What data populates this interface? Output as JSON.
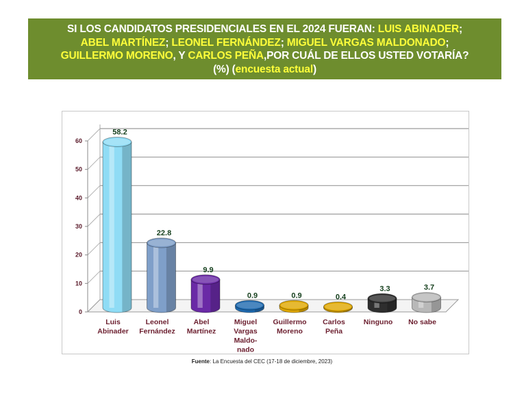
{
  "header": {
    "parts": [
      {
        "text": "SI LOS CANDIDATOS PRESIDENCIALES EN EL 2024 FUERAN: ",
        "hl": false
      },
      {
        "text": "LUIS ABINADER",
        "hl": true
      },
      {
        "text": ";",
        "hl": false
      },
      {
        "text": "ABEL MARTÍNEZ",
        "hl": true
      },
      {
        "text": "; ",
        "hl": false
      },
      {
        "text": "LEONEL FERNÁNDEZ",
        "hl": true
      },
      {
        "text": "; ",
        "hl": false
      },
      {
        "text": "MIGUEL VARGAS MALDONADO",
        "hl": true
      },
      {
        "text": ";",
        "hl": false
      },
      {
        "text": "GUILLERMO MORENO",
        "hl": true
      },
      {
        "text": ", Y ",
        "hl": false
      },
      {
        "text": "CARLOS PEÑA",
        "hl": true
      },
      {
        "text": ",POR CUÁL DE ELLOS USTED VOTARÍA?",
        "hl": false
      },
      {
        "text": "(%) (",
        "hl": false
      },
      {
        "text": "encuesta actual",
        "hl": true
      },
      {
        "text": ")",
        "hl": false
      }
    ]
  },
  "colors": {
    "header_bg": "#6e8d2e",
    "highlight": "#ffff3a"
  },
  "chart_data": {
    "type": "bar",
    "title": "SI LOS CANDIDATOS PRESIDENCIALES EN EL 2024 FUERAN... ¿POR CUÁL DE ELLOS USTED VOTARÍA? (%) (encuesta actual)",
    "categories": [
      [
        "Luis",
        "Abinader"
      ],
      [
        "Leonel",
        "Fernández"
      ],
      [
        "Abel",
        "Martínez"
      ],
      [
        "Miguel",
        "Vargas",
        "Maldo-",
        "nado"
      ],
      [
        "Guillermo",
        "Moreno"
      ],
      [
        "Carlos",
        "Peña"
      ],
      [
        "Ninguno"
      ],
      [
        "No sabe"
      ]
    ],
    "values": [
      58.2,
      22.8,
      9.9,
      0.9,
      0.9,
      0.4,
      3.3,
      3.7
    ],
    "value_labels": [
      "58.2",
      "22.8",
      "9.9",
      "0.9",
      "0.9",
      "0.4",
      "3.3",
      "3.7"
    ],
    "bar_colors": [
      "#8fdcf5",
      "#7f9fc9",
      "#6a2aa6",
      "#1f6ab0",
      "#e0a800",
      "#e0a800",
      "#2e2e2e",
      "#b8b8b8"
    ],
    "yticks": [
      "0",
      "10",
      "20",
      "30",
      "40",
      "50",
      "60"
    ],
    "ylim": [
      0,
      60
    ],
    "xlabel": "",
    "ylabel": "",
    "grid": true
  },
  "source": {
    "label": "Fuente",
    "text": ": La Encuesta del CEC (17-18 de diciembre, 2023)"
  }
}
